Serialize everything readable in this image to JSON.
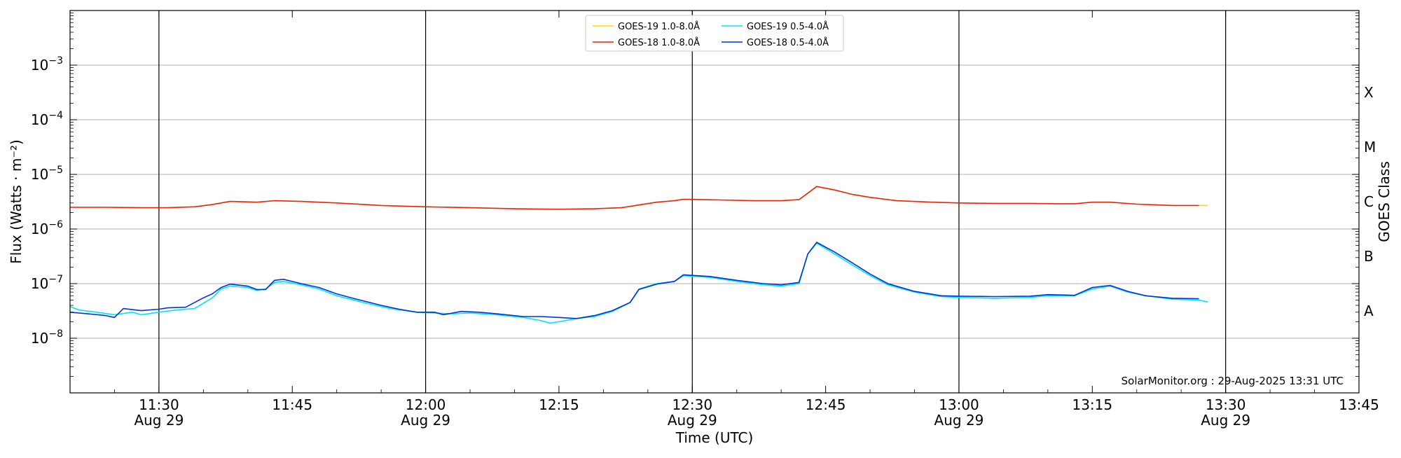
{
  "chart_data": {
    "type": "line",
    "title": "",
    "xlabel": "Time (UTC)",
    "ylabel": "Flux (Watts · m⁻²)",
    "right_axis_label": "GOES Class",
    "y_scale": "log",
    "ylim": [
      1e-09,
      0.01
    ],
    "xlim": [
      "11:20",
      "13:45"
    ],
    "grid": "horizontal",
    "legend_placement": "top-center",
    "credit": "SolarMonitor.org : 29-Aug-2025 13:31 UTC",
    "x_ticks": [
      {
        "time": "11:30",
        "label": "11:30",
        "sublabel": "Aug 29",
        "vline": true
      },
      {
        "time": "11:45",
        "label": "11:45",
        "sublabel": "",
        "vline": false
      },
      {
        "time": "12:00",
        "label": "12:00",
        "sublabel": "Aug 29",
        "vline": true
      },
      {
        "time": "12:15",
        "label": "12:15",
        "sublabel": "",
        "vline": false
      },
      {
        "time": "12:30",
        "label": "12:30",
        "sublabel": "Aug 29",
        "vline": true
      },
      {
        "time": "12:45",
        "label": "12:45",
        "sublabel": "",
        "vline": false
      },
      {
        "time": "13:00",
        "label": "13:00",
        "sublabel": "Aug 29",
        "vline": true
      },
      {
        "time": "13:15",
        "label": "13:15",
        "sublabel": "",
        "vline": false
      },
      {
        "time": "13:30",
        "label": "13:30",
        "sublabel": "Aug 29",
        "vline": true
      },
      {
        "time": "13:45",
        "label": "13:45",
        "sublabel": "",
        "vline": false
      }
    ],
    "y_ticks": [
      {
        "value": 1e-08,
        "base": "10",
        "exp": "−8"
      },
      {
        "value": 1e-07,
        "base": "10",
        "exp": "−7"
      },
      {
        "value": 1e-06,
        "base": "10",
        "exp": "−6"
      },
      {
        "value": 1e-05,
        "base": "10",
        "exp": "−5"
      },
      {
        "value": 0.0001,
        "base": "10",
        "exp": "−4"
      },
      {
        "value": 0.001,
        "base": "10",
        "exp": "−3"
      }
    ],
    "goes_classes": [
      {
        "label": "A",
        "value": 3.16e-08
      },
      {
        "label": "B",
        "value": 3.16e-07
      },
      {
        "label": "C",
        "value": 3.16e-06
      },
      {
        "label": "M",
        "value": 3.16e-05
      },
      {
        "label": "X",
        "value": 0.000316
      }
    ],
    "series": [
      {
        "name": "GOES-19 1.0-8.0Å",
        "color": "#ffd700",
        "points": [
          [
            "13:27",
            2.7e-06
          ],
          [
            "13:28",
            2.7e-06
          ]
        ]
      },
      {
        "name": "GOES-18 1.0-8.0Å",
        "color": "#ee2200",
        "points": [
          [
            "11:20",
            2.5e-06
          ],
          [
            "11:24",
            2.5e-06
          ],
          [
            "11:28",
            2.45e-06
          ],
          [
            "11:31",
            2.45e-06
          ],
          [
            "11:34",
            2.55e-06
          ],
          [
            "11:36",
            2.8e-06
          ],
          [
            "11:38",
            3.2e-06
          ],
          [
            "11:41",
            3.1e-06
          ],
          [
            "11:43",
            3.3e-06
          ],
          [
            "11:46",
            3.2e-06
          ],
          [
            "11:50",
            3e-06
          ],
          [
            "11:55",
            2.7e-06
          ],
          [
            "12:00",
            2.55e-06
          ],
          [
            "12:05",
            2.45e-06
          ],
          [
            "12:10",
            2.35e-06
          ],
          [
            "12:15",
            2.3e-06
          ],
          [
            "12:19",
            2.35e-06
          ],
          [
            "12:22",
            2.45e-06
          ],
          [
            "12:24",
            2.75e-06
          ],
          [
            "12:26",
            3.1e-06
          ],
          [
            "12:28",
            3.3e-06
          ],
          [
            "12:29",
            3.5e-06
          ],
          [
            "12:33",
            3.4e-06
          ],
          [
            "12:37",
            3.3e-06
          ],
          [
            "12:40",
            3.3e-06
          ],
          [
            "12:42",
            3.45e-06
          ],
          [
            "12:44",
            6e-06
          ],
          [
            "12:46",
            5.2e-06
          ],
          [
            "12:48",
            4.3e-06
          ],
          [
            "12:50",
            3.8e-06
          ],
          [
            "12:53",
            3.3e-06
          ],
          [
            "12:57",
            3.1e-06
          ],
          [
            "13:00",
            3e-06
          ],
          [
            "13:04",
            2.95e-06
          ],
          [
            "13:08",
            2.95e-06
          ],
          [
            "13:11",
            2.9e-06
          ],
          [
            "13:13",
            2.9e-06
          ],
          [
            "13:15",
            3.1e-06
          ],
          [
            "13:17",
            3.1e-06
          ],
          [
            "13:20",
            2.85e-06
          ],
          [
            "13:24",
            2.7e-06
          ],
          [
            "13:27",
            2.7e-06
          ]
        ]
      },
      {
        "name": "GOES-19 0.5-4.0Å",
        "color": "#00e5ee",
        "points": [
          [
            "11:20",
            3.8e-08
          ],
          [
            "11:21",
            3.3e-08
          ],
          [
            "11:23",
            3e-08
          ],
          [
            "11:25",
            2.7e-08
          ],
          [
            "11:27",
            3e-08
          ],
          [
            "11:28",
            2.7e-08
          ],
          [
            "11:30",
            3e-08
          ],
          [
            "11:32",
            3.3e-08
          ],
          [
            "11:34",
            3.5e-08
          ],
          [
            "11:36",
            5.5e-08
          ],
          [
            "11:37",
            8e-08
          ],
          [
            "11:38",
            9e-08
          ],
          [
            "11:40",
            8.5e-08
          ],
          [
            "11:41",
            7.5e-08
          ],
          [
            "11:42",
            8e-08
          ],
          [
            "11:43",
            1.05e-07
          ],
          [
            "11:44",
            1.1e-07
          ],
          [
            "11:46",
            9.5e-08
          ],
          [
            "11:48",
            8e-08
          ],
          [
            "11:50",
            6e-08
          ],
          [
            "11:53",
            4.5e-08
          ],
          [
            "11:56",
            3.5e-08
          ],
          [
            "11:59",
            3e-08
          ],
          [
            "12:01",
            2.9e-08
          ],
          [
            "12:03",
            2.8e-08
          ],
          [
            "12:05",
            2.9e-08
          ],
          [
            "12:08",
            2.7e-08
          ],
          [
            "12:11",
            2.4e-08
          ],
          [
            "12:13",
            2.1e-08
          ],
          [
            "12:14",
            1.9e-08
          ],
          [
            "12:15",
            2e-08
          ],
          [
            "12:17",
            2.3e-08
          ],
          [
            "12:19",
            2.5e-08
          ],
          [
            "12:21",
            3.1e-08
          ],
          [
            "12:23",
            4.5e-08
          ],
          [
            "12:24",
            8e-08
          ],
          [
            "12:26",
            1e-07
          ],
          [
            "12:28",
            1.1e-07
          ],
          [
            "12:29",
            1.4e-07
          ],
          [
            "12:32",
            1.3e-07
          ],
          [
            "12:35",
            1.1e-07
          ],
          [
            "12:38",
            9.5e-08
          ],
          [
            "12:40",
            9e-08
          ],
          [
            "12:42",
            1e-07
          ],
          [
            "12:43",
            3.5e-07
          ],
          [
            "12:44",
            5.5e-07
          ],
          [
            "12:46",
            3.5e-07
          ],
          [
            "12:48",
            2.2e-07
          ],
          [
            "12:50",
            1.4e-07
          ],
          [
            "12:52",
            9.5e-08
          ],
          [
            "12:55",
            7e-08
          ],
          [
            "12:58",
            5.8e-08
          ],
          [
            "13:00",
            5.6e-08
          ],
          [
            "13:04",
            5.4e-08
          ],
          [
            "13:08",
            5.6e-08
          ],
          [
            "13:10",
            6e-08
          ],
          [
            "13:13",
            6e-08
          ],
          [
            "13:15",
            8e-08
          ],
          [
            "13:17",
            9e-08
          ],
          [
            "13:19",
            7e-08
          ],
          [
            "13:21",
            6e-08
          ],
          [
            "13:24",
            5.2e-08
          ],
          [
            "13:27",
            5e-08
          ],
          [
            "13:28",
            4.6e-08
          ]
        ]
      },
      {
        "name": "GOES-18 0.5-4.0Å",
        "color": "#0033dd",
        "points": [
          [
            "11:20",
            3e-08
          ],
          [
            "11:22",
            2.8e-08
          ],
          [
            "11:24",
            2.6e-08
          ],
          [
            "11:25",
            2.4e-08
          ],
          [
            "11:26",
            3.5e-08
          ],
          [
            "11:28",
            3.2e-08
          ],
          [
            "11:30",
            3.4e-08
          ],
          [
            "11:31",
            3.6e-08
          ],
          [
            "11:33",
            3.7e-08
          ],
          [
            "11:35",
            5.5e-08
          ],
          [
            "11:36",
            6.5e-08
          ],
          [
            "11:37",
            8.5e-08
          ],
          [
            "11:38",
            9.8e-08
          ],
          [
            "11:40",
            9e-08
          ],
          [
            "11:41",
            7.8e-08
          ],
          [
            "11:42",
            7.8e-08
          ],
          [
            "11:43",
            1.15e-07
          ],
          [
            "11:44",
            1.2e-07
          ],
          [
            "11:46",
            1e-07
          ],
          [
            "11:48",
            8.5e-08
          ],
          [
            "11:50",
            6.5e-08
          ],
          [
            "11:52",
            5.3e-08
          ],
          [
            "11:55",
            4e-08
          ],
          [
            "11:57",
            3.4e-08
          ],
          [
            "11:59",
            3e-08
          ],
          [
            "12:01",
            3e-08
          ],
          [
            "12:02",
            2.7e-08
          ],
          [
            "12:04",
            3.1e-08
          ],
          [
            "12:06",
            3e-08
          ],
          [
            "12:08",
            2.8e-08
          ],
          [
            "12:11",
            2.5e-08
          ],
          [
            "12:13",
            2.5e-08
          ],
          [
            "12:15",
            2.4e-08
          ],
          [
            "12:17",
            2.3e-08
          ],
          [
            "12:19",
            2.6e-08
          ],
          [
            "12:21",
            3.2e-08
          ],
          [
            "12:23",
            4.5e-08
          ],
          [
            "12:24",
            7.8e-08
          ],
          [
            "12:26",
            9.8e-08
          ],
          [
            "12:28",
            1.1e-07
          ],
          [
            "12:29",
            1.45e-07
          ],
          [
            "12:32",
            1.35e-07
          ],
          [
            "12:35",
            1.15e-07
          ],
          [
            "12:38",
            1e-07
          ],
          [
            "12:40",
            9.5e-08
          ],
          [
            "12:42",
            1.05e-07
          ],
          [
            "12:43",
            3.5e-07
          ],
          [
            "12:44",
            5.7e-07
          ],
          [
            "12:46",
            3.8e-07
          ],
          [
            "12:48",
            2.4e-07
          ],
          [
            "12:50",
            1.5e-07
          ],
          [
            "12:52",
            1e-07
          ],
          [
            "12:55",
            7.2e-08
          ],
          [
            "12:58",
            6e-08
          ],
          [
            "13:00",
            5.9e-08
          ],
          [
            "13:04",
            5.8e-08
          ],
          [
            "13:08",
            5.9e-08
          ],
          [
            "13:10",
            6.3e-08
          ],
          [
            "13:13",
            6.1e-08
          ],
          [
            "13:15",
            8.5e-08
          ],
          [
            "13:17",
            9.3e-08
          ],
          [
            "13:19",
            7.2e-08
          ],
          [
            "13:21",
            6e-08
          ],
          [
            "13:24",
            5.4e-08
          ],
          [
            "13:27",
            5.3e-08
          ]
        ]
      }
    ]
  }
}
